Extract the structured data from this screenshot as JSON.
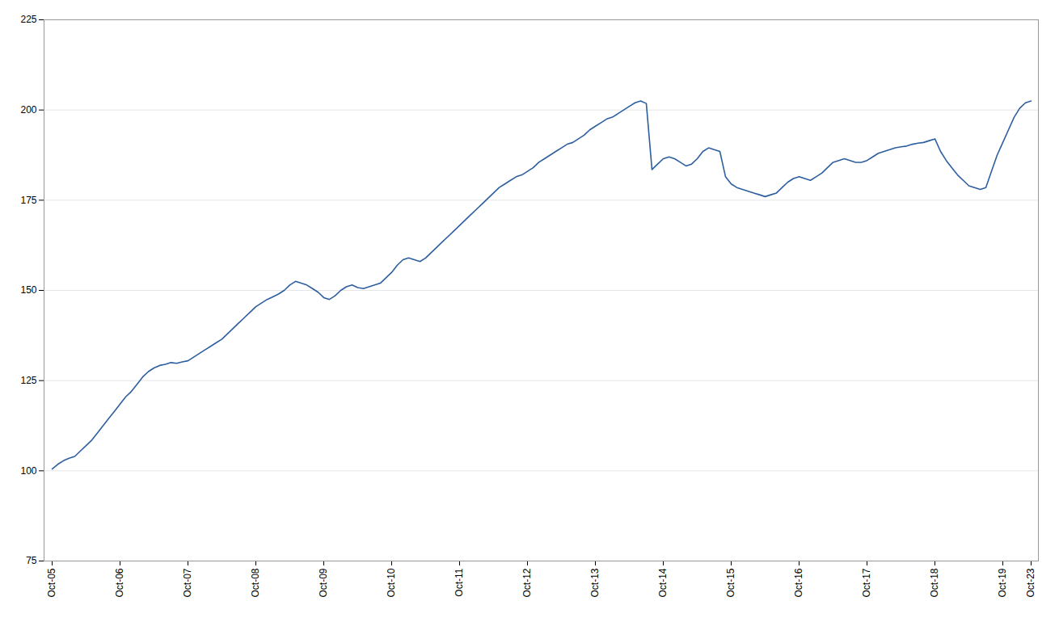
{
  "chart_data": {
    "type": "line",
    "categories": [
      "Oct-05",
      null,
      null,
      null,
      null,
      null,
      null,
      null,
      null,
      null,
      null,
      null,
      "Oct-06",
      null,
      null,
      null,
      null,
      null,
      null,
      null,
      null,
      null,
      null,
      null,
      "Oct-07",
      null,
      null,
      null,
      null,
      null,
      null,
      null,
      null,
      null,
      null,
      null,
      "Oct-08",
      null,
      null,
      null,
      null,
      null,
      null,
      null,
      null,
      null,
      null,
      null,
      "Oct-09",
      null,
      null,
      null,
      null,
      null,
      null,
      null,
      null,
      null,
      null,
      null,
      "Oct-10",
      null,
      null,
      null,
      null,
      null,
      null,
      null,
      null,
      null,
      null,
      null,
      "Oct-11",
      null,
      null,
      null,
      null,
      null,
      null,
      null,
      null,
      null,
      null,
      null,
      "Oct-12",
      null,
      null,
      null,
      null,
      null,
      null,
      null,
      null,
      null,
      null,
      null,
      "Oct-13",
      null,
      null,
      null,
      null,
      null,
      null,
      null,
      null,
      null,
      null,
      null,
      "Oct-14",
      null,
      null,
      null,
      null,
      null,
      null,
      null,
      null,
      null,
      null,
      null,
      "Oct-15",
      null,
      null,
      null,
      null,
      null,
      null,
      null,
      null,
      null,
      null,
      null,
      "Oct-16",
      null,
      null,
      null,
      null,
      null,
      null,
      null,
      null,
      null,
      null,
      null,
      "Oct-17",
      null,
      null,
      null,
      null,
      null,
      null,
      null,
      null,
      null,
      null,
      null,
      "Oct-18",
      null,
      null,
      null,
      null,
      null,
      null,
      null,
      null,
      null,
      null,
      null,
      "Oct-19",
      null,
      null,
      null,
      null,
      "Oct-23"
    ],
    "values": [
      100.5,
      101.8,
      102.8,
      103.5,
      104.0,
      105.5,
      107.0,
      108.5,
      110.5,
      112.5,
      114.5,
      116.5,
      118.5,
      120.5,
      122.0,
      124.0,
      126.0,
      127.5,
      128.5,
      129.2,
      129.5,
      130.0,
      129.8,
      130.2,
      130.5,
      131.5,
      132.5,
      133.5,
      134.5,
      135.5,
      136.5,
      138.0,
      139.5,
      141.0,
      142.5,
      144.0,
      145.5,
      146.5,
      147.5,
      148.2,
      149.0,
      150.0,
      151.5,
      152.5,
      152.0,
      151.5,
      150.5,
      149.5,
      148.0,
      147.5,
      148.5,
      150.0,
      151.0,
      151.5,
      150.8,
      150.5,
      151.0,
      151.5,
      152.0,
      153.5,
      155.0,
      157.0,
      158.5,
      159.0,
      158.5,
      158.0,
      159.0,
      160.5,
      162.0,
      163.5,
      165.0,
      166.5,
      168.0,
      169.5,
      171.0,
      172.5,
      174.0,
      175.5,
      177.0,
      178.5,
      179.5,
      180.5,
      181.5,
      182.0,
      183.0,
      184.0,
      185.5,
      186.5,
      187.5,
      188.5,
      189.5,
      190.5,
      191.0,
      192.0,
      193.0,
      194.5,
      195.5,
      196.5,
      197.5,
      198.0,
      199.0,
      200.0,
      201.0,
      202.0,
      202.5,
      201.8,
      183.5,
      185.0,
      186.5,
      187.0,
      186.5,
      185.5,
      184.5,
      185.0,
      186.5,
      188.5,
      189.5,
      189.0,
      188.5,
      181.5,
      179.5,
      178.5,
      178.0,
      177.5,
      177.0,
      176.5,
      176.0,
      176.5,
      177.0,
      178.5,
      180.0,
      181.0,
      181.5,
      181.0,
      180.5,
      181.5,
      182.5,
      184.0,
      185.5,
      186.0,
      186.5,
      186.0,
      185.5,
      185.5,
      186.0,
      187.0,
      188.0,
      188.5,
      189.0,
      189.5,
      189.8,
      190.0,
      190.5,
      190.8,
      191.0,
      191.5,
      192.0,
      188.5,
      186.0,
      184.0,
      182.0,
      180.5,
      179.0,
      178.5,
      178.0,
      178.5,
      183.0,
      187.5,
      191.0,
      194.5,
      198.0,
      200.5,
      202.0,
      202.5
    ],
    "color": "#2d5fa0",
    "ylim": [
      75,
      225
    ],
    "yticks": [
      75,
      100,
      125,
      150,
      175,
      200,
      225
    ],
    "grid": true
  }
}
